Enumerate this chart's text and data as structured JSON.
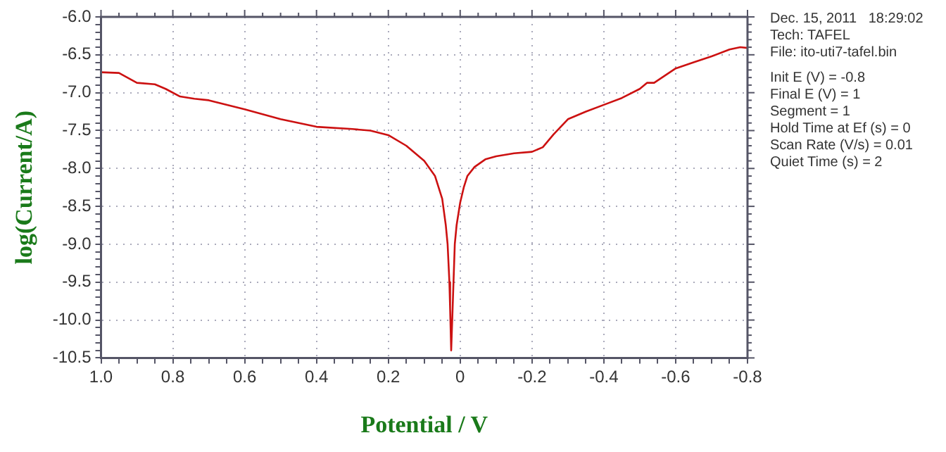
{
  "chart_data": {
    "type": "line",
    "xlabel": "Potential / V",
    "ylabel": "log(Current/A)",
    "x": [
      1.0,
      0.95,
      0.9,
      0.85,
      0.82,
      0.78,
      0.74,
      0.7,
      0.6,
      0.5,
      0.4,
      0.3,
      0.25,
      0.2,
      0.15,
      0.1,
      0.07,
      0.05,
      0.04,
      0.035,
      0.03,
      0.028,
      0.025,
      0.02,
      0.015,
      0.01,
      0.0,
      -0.01,
      -0.02,
      -0.04,
      -0.07,
      -0.1,
      -0.15,
      -0.2,
      -0.23,
      -0.26,
      -0.3,
      -0.35,
      -0.4,
      -0.45,
      -0.5,
      -0.52,
      -0.54,
      -0.6,
      -0.65,
      -0.7,
      -0.75,
      -0.78,
      -0.8
    ],
    "series": [
      {
        "color": "#cc1111",
        "values": [
          -6.73,
          -6.74,
          -6.87,
          -6.89,
          -6.95,
          -7.05,
          -7.08,
          -7.1,
          -7.22,
          -7.35,
          -7.45,
          -7.48,
          -7.5,
          -7.56,
          -7.7,
          -7.9,
          -8.1,
          -8.4,
          -8.75,
          -9.0,
          -9.5,
          -9.85,
          -10.4,
          -9.7,
          -9.0,
          -8.75,
          -8.45,
          -8.25,
          -8.1,
          -7.98,
          -7.88,
          -7.84,
          -7.8,
          -7.78,
          -7.72,
          -7.55,
          -7.35,
          -7.25,
          -7.16,
          -7.07,
          -6.95,
          -6.87,
          -6.87,
          -6.68,
          -6.6,
          -6.52,
          -6.43,
          -6.4,
          -6.41
        ]
      }
    ],
    "xlim": [
      1.0,
      -0.8
    ],
    "xticks": [
      {
        "value": 1.0,
        "label": "1.0"
      },
      {
        "value": 0.8,
        "label": "0.8"
      },
      {
        "value": 0.6,
        "label": "0.6"
      },
      {
        "value": 0.4,
        "label": "0.4"
      },
      {
        "value": 0.2,
        "label": "0.2"
      },
      0,
      {
        "value": -0.2,
        "label": "-0.2"
      },
      {
        "value": -0.4,
        "label": "-0.4"
      },
      {
        "value": -0.6,
        "label": "-0.6"
      },
      {
        "value": -0.8,
        "label": "-0.8"
      }
    ],
    "ylim": [
      -10.5,
      -6.0
    ],
    "yticks": [
      {
        "value": -10.5,
        "label": "-10.5"
      },
      {
        "value": -10.0,
        "label": "-10.0"
      },
      {
        "value": -9.5,
        "label": "-9.5"
      },
      {
        "value": -9.0,
        "label": "-9.0"
      },
      {
        "value": -8.5,
        "label": "-8.5"
      },
      {
        "value": -8.0,
        "label": "-8.0"
      },
      {
        "value": -7.5,
        "label": "-7.5"
      },
      {
        "value": -7.0,
        "label": "-7.0"
      },
      {
        "value": -6.5,
        "label": "-6.5"
      },
      {
        "value": -6.0,
        "label": "-6.0"
      }
    ],
    "grid": true,
    "legend": false,
    "marker": "none",
    "line_style": "solid",
    "annotations": [
      "Dec. 15, 2011   18:29:02",
      "Tech: TAFEL",
      "File: ito-uti7-tafel.bin",
      "Init E (V) = -0.8",
      "Final E (V) = 1",
      "Segment = 1",
      "Hold Time at Ef (s) = 0",
      "Scan Rate (V/s) = 0.01",
      "Quiet Time (s) = 2"
    ]
  }
}
